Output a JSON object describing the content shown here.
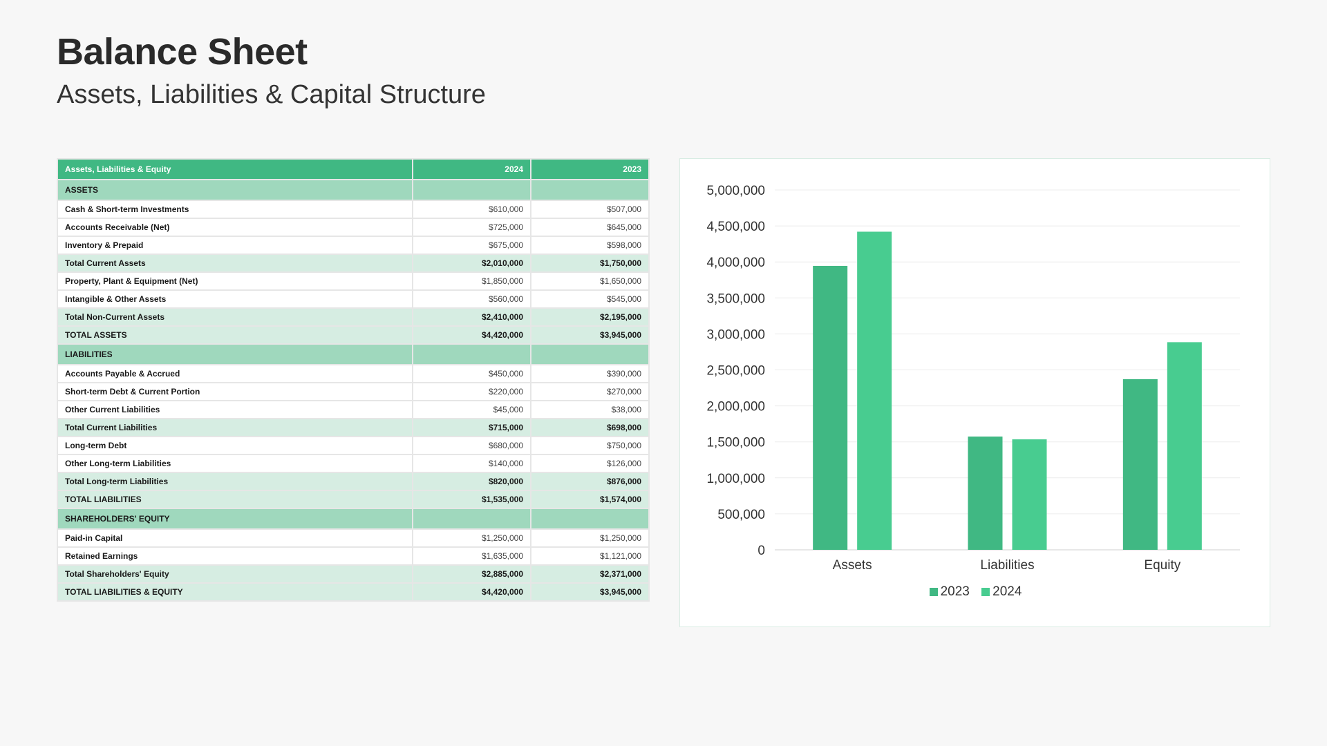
{
  "header": {
    "title": "Balance Sheet",
    "subtitle": "Assets, Liabilities & Capital Structure"
  },
  "table": {
    "columns": [
      "Assets, Liabilities & Equity",
      "2024",
      "2023"
    ],
    "rows": [
      {
        "type": "section",
        "label": "ASSETS",
        "v2024": "",
        "v2023": ""
      },
      {
        "type": "item",
        "label": "Cash & Short-term Investments",
        "v2024": "$610,000",
        "v2023": "$507,000"
      },
      {
        "type": "item",
        "label": "Accounts Receivable (Net)",
        "v2024": "$725,000",
        "v2023": "$645,000"
      },
      {
        "type": "item",
        "label": "Inventory & Prepaid",
        "v2024": "$675,000",
        "v2023": "$598,000"
      },
      {
        "type": "total",
        "label": "Total Current Assets",
        "v2024": "$2,010,000",
        "v2023": "$1,750,000"
      },
      {
        "type": "item",
        "label": "Property, Plant & Equipment (Net)",
        "v2024": "$1,850,000",
        "v2023": "$1,650,000"
      },
      {
        "type": "item",
        "label": "Intangible & Other Assets",
        "v2024": "$560,000",
        "v2023": "$545,000"
      },
      {
        "type": "total",
        "label": "Total Non-Current Assets",
        "v2024": "$2,410,000",
        "v2023": "$2,195,000"
      },
      {
        "type": "total",
        "label": "TOTAL ASSETS",
        "v2024": "$4,420,000",
        "v2023": "$3,945,000"
      },
      {
        "type": "section",
        "label": "LIABILITIES",
        "v2024": "",
        "v2023": ""
      },
      {
        "type": "item",
        "label": "Accounts Payable & Accrued",
        "v2024": "$450,000",
        "v2023": "$390,000"
      },
      {
        "type": "item",
        "label": "Short-term Debt & Current Portion",
        "v2024": "$220,000",
        "v2023": "$270,000"
      },
      {
        "type": "item",
        "label": "Other Current Liabilities",
        "v2024": "$45,000",
        "v2023": "$38,000"
      },
      {
        "type": "total",
        "label": "Total Current Liabilities",
        "v2024": "$715,000",
        "v2023": "$698,000"
      },
      {
        "type": "item",
        "label": "Long-term Debt",
        "v2024": "$680,000",
        "v2023": "$750,000"
      },
      {
        "type": "item",
        "label": "Other Long-term Liabilities",
        "v2024": "$140,000",
        "v2023": "$126,000"
      },
      {
        "type": "total",
        "label": "Total Long-term Liabilities",
        "v2024": "$820,000",
        "v2023": "$876,000"
      },
      {
        "type": "total",
        "label": "TOTAL LIABILITIES",
        "v2024": "$1,535,000",
        "v2023": "$1,574,000"
      },
      {
        "type": "section",
        "label": "SHAREHOLDERS' EQUITY",
        "v2024": "",
        "v2023": ""
      },
      {
        "type": "item",
        "label": "Paid-in Capital",
        "v2024": "$1,250,000",
        "v2023": "$1,250,000"
      },
      {
        "type": "item",
        "label": "Retained Earnings",
        "v2024": "$1,635,000",
        "v2023": "$1,121,000"
      },
      {
        "type": "total",
        "label": "Total Shareholders' Equity",
        "v2024": "$2,885,000",
        "v2023": "$2,371,000"
      },
      {
        "type": "total",
        "label": "TOTAL LIABILITIES & EQUITY",
        "v2024": "$4,420,000",
        "v2023": "$3,945,000"
      }
    ]
  },
  "colors": {
    "header_green": "#40b883",
    "section_green": "#9fd8bd",
    "total_green": "#d6ede2",
    "series_2023": "#40b883",
    "series_2024": "#48cc90"
  },
  "chart_data": {
    "type": "bar",
    "categories": [
      "Assets",
      "Liabilities",
      "Equity"
    ],
    "series": [
      {
        "name": "2023",
        "values": [
          3945000,
          1574000,
          2371000
        ],
        "color": "#40b883"
      },
      {
        "name": "2024",
        "values": [
          4420000,
          1535000,
          2885000
        ],
        "color": "#48cc90"
      }
    ],
    "ylim": [
      0,
      5000000
    ],
    "yticks": [
      0,
      500000,
      1000000,
      1500000,
      2000000,
      2500000,
      3000000,
      3500000,
      4000000,
      4500000,
      5000000
    ],
    "ytick_labels": [
      "0",
      "500,000",
      "1,000,000",
      "1,500,000",
      "2,000,000",
      "2,500,000",
      "3,000,000",
      "3,500,000",
      "4,000,000",
      "4,500,000",
      "5,000,000"
    ],
    "grid": true,
    "legend": "bottom-center"
  }
}
